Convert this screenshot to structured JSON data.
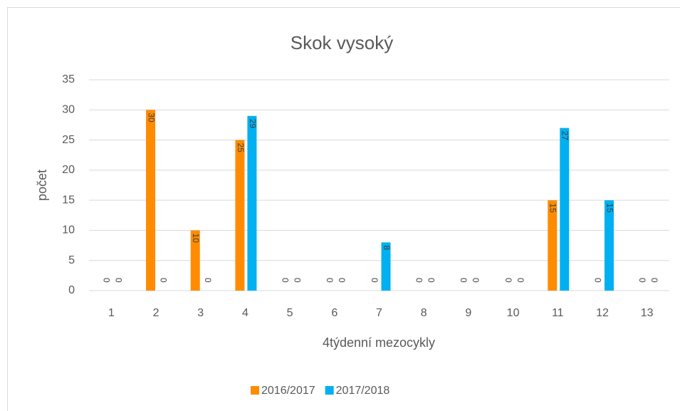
{
  "chart_data": {
    "type": "bar",
    "title": "Skok vysoký",
    "x_label": "4týdenní mezocykly",
    "y_label": "počet",
    "categories": [
      "1",
      "2",
      "3",
      "4",
      "5",
      "6",
      "7",
      "8",
      "9",
      "10",
      "11",
      "12",
      "13"
    ],
    "series": [
      {
        "name": "2016/2017",
        "color": "#ff8c00",
        "values": [
          0,
          30,
          10,
          25,
          0,
          0,
          0,
          0,
          0,
          0,
          15,
          0,
          0
        ]
      },
      {
        "name": "2017/2018",
        "color": "#00b0f0",
        "values": [
          0,
          0,
          0,
          29,
          0,
          0,
          8,
          0,
          0,
          0,
          27,
          15,
          0
        ]
      }
    ],
    "ylim": [
      0,
      35
    ],
    "yticks": [
      0,
      5,
      10,
      15,
      20,
      25,
      30,
      35
    ],
    "grid": true,
    "legend": "bottom",
    "data_labels": true
  }
}
